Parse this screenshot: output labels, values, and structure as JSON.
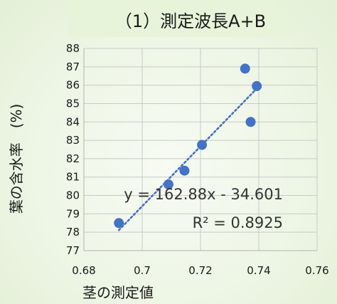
{
  "chart_data": {
    "type": "scatter",
    "title": "（1）測定波長A+B",
    "xlabel": "茎の測定値",
    "ylabel": "葉の含水率　(%)",
    "xlim": [
      0.68,
      0.76
    ],
    "ylim": [
      77,
      88
    ],
    "x_ticks": [
      "0.68",
      "0.7",
      "0.72",
      "0.74",
      "0.76"
    ],
    "y_ticks": [
      "77",
      "78",
      "79",
      "80",
      "81",
      "82",
      "83",
      "84",
      "85",
      "86",
      "87",
      "88"
    ],
    "grid": true,
    "series": [
      {
        "points": [
          {
            "x": 0.692,
            "y": 78.5
          },
          {
            "x": 0.709,
            "y": 80.6
          },
          {
            "x": 0.7145,
            "y": 81.35
          },
          {
            "x": 0.7205,
            "y": 82.75
          },
          {
            "x": 0.7353,
            "y": 86.9
          },
          {
            "x": 0.7372,
            "y": 84.0
          },
          {
            "x": 0.7393,
            "y": 85.95
          }
        ]
      }
    ],
    "trendline": {
      "type": "linear",
      "slope": 162.88,
      "intercept": -34.601,
      "x_range": [
        0.692,
        0.7393
      ],
      "equation": "y = 162.88x - 34.601",
      "r_squared": "R² = 0.8925"
    },
    "colors": {
      "point": "#4472c4",
      "trendline": "#4472c4",
      "grid": "#c9c9c9",
      "axis": "#bfbfbf",
      "title_bg": "#e6f3d8"
    }
  }
}
